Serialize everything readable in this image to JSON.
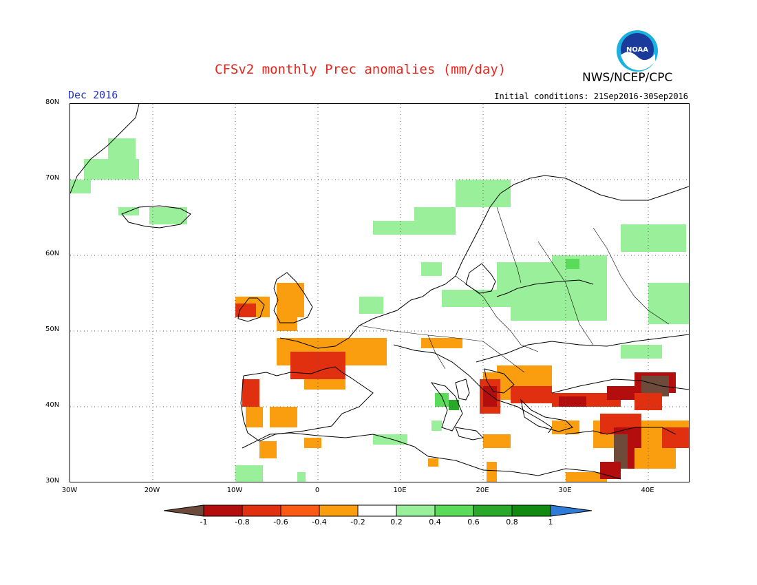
{
  "header": {
    "title": "CFSv2 monthly Prec anomalies (mm/day)",
    "organization": "NWS/NCEP/CPC",
    "valid_month": "Dec 2016",
    "initial_conditions": "Initial conditions: 21Sep2016-30Sep2016",
    "logo_text": "NOAA"
  },
  "axes": {
    "lat_labels": [
      "80N",
      "70N",
      "60N",
      "50N",
      "40N",
      "30N"
    ],
    "lon_labels": [
      "30W",
      "20W",
      "10W",
      "0",
      "10E",
      "20E",
      "30E",
      "40E"
    ]
  },
  "colorbar": {
    "labels": [
      "-1",
      "-0.8",
      "-0.6",
      "-0.4",
      "-0.2",
      "0.2",
      "0.4",
      "0.6",
      "0.8",
      "1"
    ],
    "colors": [
      "#6e4a3a",
      "#b30d0d",
      "#e03010",
      "#fa5a14",
      "#fa9e0f",
      "#ffffff",
      "#9af09a",
      "#5adc5a",
      "#2aa82a",
      "#108a10",
      "#2f7bd8"
    ]
  },
  "anomaly_colors": {
    "dry_extreme": "#6e4a3a",
    "dry_strong": "#b30d0d",
    "dry_moderate": "#e03010",
    "dry_weak": "#fa9e0f",
    "wet_weak": "#9af09a",
    "wet_moderate": "#5adc5a",
    "wet_strong": "#2aa82a"
  }
}
